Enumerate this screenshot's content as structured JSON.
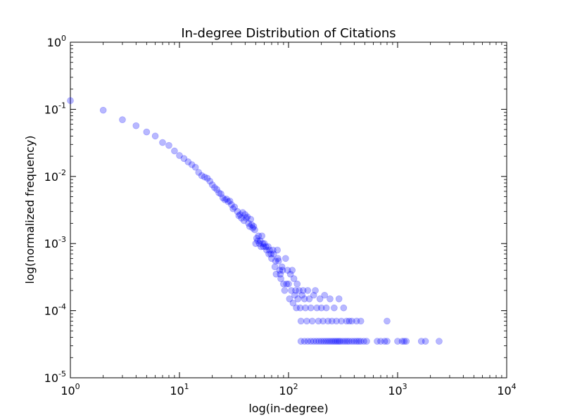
{
  "chart_data": {
    "type": "scatter",
    "title": "In-degree Distribution of Citations",
    "xlabel": "log(in-degree)",
    "ylabel": "log(normalized frequency)",
    "xscale": "log",
    "yscale": "log",
    "xlim": [
      1,
      10000
    ],
    "ylim": [
      1e-05,
      1
    ],
    "x_ticks": [
      {
        "base": "10",
        "exp": "0"
      },
      {
        "base": "10",
        "exp": "1"
      },
      {
        "base": "10",
        "exp": "2"
      },
      {
        "base": "10",
        "exp": "3"
      },
      {
        "base": "10",
        "exp": "4"
      }
    ],
    "y_ticks": [
      {
        "base": "10",
        "exp": "-5"
      },
      {
        "base": "10",
        "exp": "-4"
      },
      {
        "base": "10",
        "exp": "-3"
      },
      {
        "base": "10",
        "exp": "-2"
      },
      {
        "base": "10",
        "exp": "-1"
      },
      {
        "base": "10",
        "exp": "0"
      }
    ],
    "grid": false,
    "legend": "none",
    "marker_color": "#0000ff",
    "marker_alpha": 0.28,
    "points": [
      [
        1,
        0.135
      ],
      [
        2,
        0.097
      ],
      [
        3,
        0.07
      ],
      [
        4,
        0.057
      ],
      [
        5,
        0.046
      ],
      [
        6,
        0.04
      ],
      [
        7,
        0.032
      ],
      [
        8,
        0.029
      ],
      [
        9,
        0.024
      ],
      [
        10,
        0.0205
      ],
      [
        11,
        0.0185
      ],
      [
        12,
        0.0165
      ],
      [
        13,
        0.015
      ],
      [
        14,
        0.0137
      ],
      [
        15,
        0.0115
      ],
      [
        16,
        0.0103
      ],
      [
        17,
        0.0098
      ],
      [
        18,
        0.0094
      ],
      [
        19,
        0.0085
      ],
      [
        20,
        0.0075
      ],
      [
        21,
        0.0068
      ],
      [
        22,
        0.0064
      ],
      [
        23,
        0.0057
      ],
      [
        24,
        0.0055
      ],
      [
        25,
        0.0048
      ],
      [
        26,
        0.0045
      ],
      [
        27,
        0.0046
      ],
      [
        28,
        0.0042
      ],
      [
        29,
        0.0043
      ],
      [
        30,
        0.0038
      ],
      [
        31,
        0.0033
      ],
      [
        32,
        0.0035
      ],
      [
        34,
        0.003
      ],
      [
        35,
        0.0026
      ],
      [
        36,
        0.0027
      ],
      [
        37,
        0.0024
      ],
      [
        38,
        0.0029
      ],
      [
        39,
        0.0022
      ],
      [
        40,
        0.0027
      ],
      [
        41,
        0.0024
      ],
      [
        42,
        0.0025
      ],
      [
        43,
        0.002
      ],
      [
        44,
        0.0018
      ],
      [
        45,
        0.0023
      ],
      [
        46,
        0.0019
      ],
      [
        47,
        0.0017
      ],
      [
        48,
        0.0018
      ],
      [
        49,
        0.0016
      ],
      [
        50,
        0.001
      ],
      [
        51,
        0.0012
      ],
      [
        52,
        0.0011
      ],
      [
        53,
        0.0013
      ],
      [
        54,
        0.001
      ],
      [
        55,
        0.0011
      ],
      [
        56,
        0.0009
      ],
      [
        57,
        0.0013
      ],
      [
        58,
        0.001
      ],
      [
        59,
        0.0009
      ],
      [
        60,
        0.001
      ],
      [
        62,
        0.0009
      ],
      [
        63,
        0.0008
      ],
      [
        65,
        0.0009
      ],
      [
        66,
        0.0007
      ],
      [
        67,
        0.0008
      ],
      [
        69,
        0.0007
      ],
      [
        70,
        0.0006
      ],
      [
        72,
        0.0008
      ],
      [
        73,
        0.0007
      ],
      [
        75,
        0.00045
      ],
      [
        76,
        0.00055
      ],
      [
        77,
        0.00035
      ],
      [
        79,
        0.0008
      ],
      [
        80,
        0.0006
      ],
      [
        81,
        0.00055
      ],
      [
        83,
        0.0004
      ],
      [
        84,
        0.00035
      ],
      [
        85,
        0.0003
      ],
      [
        87,
        0.00045
      ],
      [
        88,
        0.0004
      ],
      [
        90,
        0.00025
      ],
      [
        92,
        0.0002
      ],
      [
        94,
        0.0006
      ],
      [
        96,
        0.00025
      ],
      [
        98,
        0.0004
      ],
      [
        100,
        0.00025
      ],
      [
        102,
        0.00015
      ],
      [
        104,
        0.00035
      ],
      [
        106,
        0.0002
      ],
      [
        108,
        0.0004
      ],
      [
        110,
        0.00013
      ],
      [
        112,
        0.0003
      ],
      [
        114,
        0.00017
      ],
      [
        116,
        0.0002
      ],
      [
        118,
        0.00011
      ],
      [
        120,
        0.00025
      ],
      [
        122,
        0.00015
      ],
      [
        125,
        0.0002
      ],
      [
        128,
        0.00011
      ],
      [
        130,
        7e-05
      ],
      [
        133,
        0.00017
      ],
      [
        136,
        0.0002
      ],
      [
        140,
        0.00015
      ],
      [
        143,
        0.00011
      ],
      [
        147,
        7e-05
      ],
      [
        150,
        0.0002
      ],
      [
        155,
        0.00015
      ],
      [
        160,
        0.00011
      ],
      [
        165,
        7e-05
      ],
      [
        170,
        0.00017
      ],
      [
        176,
        0.0002
      ],
      [
        182,
        0.00011
      ],
      [
        188,
        7e-05
      ],
      [
        194,
        0.00015
      ],
      [
        200,
        0.00011
      ],
      [
        207,
        7e-05
      ],
      [
        214,
        0.00017
      ],
      [
        222,
        0.00011
      ],
      [
        230,
        7e-05
      ],
      [
        240,
        0.00015
      ],
      [
        250,
        7e-05
      ],
      [
        262,
        0.00011
      ],
      [
        275,
        7e-05
      ],
      [
        290,
        0.00015
      ],
      [
        305,
        7e-05
      ],
      [
        320,
        0.00011
      ],
      [
        340,
        7e-05
      ],
      [
        360,
        7e-05
      ],
      [
        380,
        7e-05
      ],
      [
        420,
        7e-05
      ],
      [
        460,
        7e-05
      ],
      [
        800,
        7e-05
      ],
      [
        130,
        3.5e-05
      ],
      [
        140,
        3.5e-05
      ],
      [
        150,
        3.5e-05
      ],
      [
        160,
        3.5e-05
      ],
      [
        170,
        3.5e-05
      ],
      [
        180,
        3.5e-05
      ],
      [
        190,
        3.5e-05
      ],
      [
        200,
        3.5e-05
      ],
      [
        210,
        3.5e-05
      ],
      [
        220,
        3.5e-05
      ],
      [
        230,
        3.5e-05
      ],
      [
        240,
        3.5e-05
      ],
      [
        250,
        3.5e-05
      ],
      [
        260,
        3.5e-05
      ],
      [
        270,
        3.5e-05
      ],
      [
        280,
        3.5e-05
      ],
      [
        290,
        3.5e-05
      ],
      [
        300,
        3.5e-05
      ],
      [
        315,
        3.5e-05
      ],
      [
        330,
        3.5e-05
      ],
      [
        345,
        3.5e-05
      ],
      [
        360,
        3.5e-05
      ],
      [
        380,
        3.5e-05
      ],
      [
        400,
        3.5e-05
      ],
      [
        420,
        3.5e-05
      ],
      [
        440,
        3.5e-05
      ],
      [
        460,
        3.5e-05
      ],
      [
        490,
        3.5e-05
      ],
      [
        520,
        3.5e-05
      ],
      [
        650,
        3.5e-05
      ],
      [
        700,
        3.5e-05
      ],
      [
        760,
        3.5e-05
      ],
      [
        800,
        3.5e-05
      ],
      [
        1000,
        3.5e-05
      ],
      [
        1100,
        3.5e-05
      ],
      [
        1150,
        3.5e-05
      ],
      [
        1200,
        3.5e-05
      ],
      [
        1650,
        3.5e-05
      ],
      [
        1800,
        3.5e-05
      ],
      [
        2400,
        3.5e-05
      ]
    ]
  }
}
